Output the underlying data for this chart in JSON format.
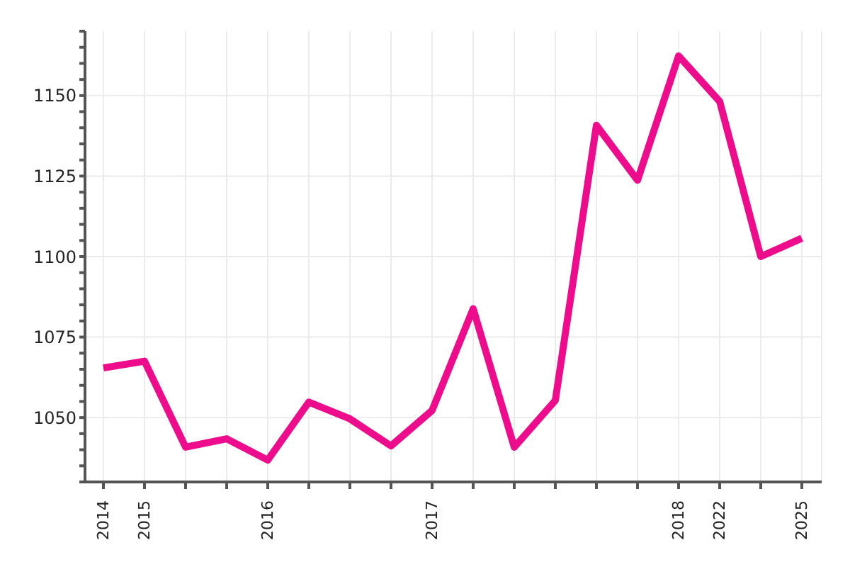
{
  "chart_data": {
    "type": "line",
    "categories": [
      "2014",
      "2015",
      null,
      null,
      "2016",
      null,
      null,
      null,
      "2017",
      null,
      null,
      null,
      null,
      null,
      "2018",
      "2022",
      null,
      "2025"
    ],
    "series": [
      {
        "color": "#ec0c8c",
        "values": [
          1065.4,
          1067.5,
          1040.8,
          1043.4,
          1036.8,
          1054.8,
          1049.6,
          1041.2,
          1052.2,
          1083.8,
          1040.8,
          1055.3,
          1140.8,
          1123.7,
          1162.3,
          1148.2,
          1100,
          1105.7
        ]
      }
    ],
    "ylim": [
      1030,
      1170
    ],
    "yticks": [
      {
        "value": 1030,
        "label": null
      },
      {
        "value": 1035,
        "label": null
      },
      {
        "value": 1040,
        "label": null
      },
      {
        "value": 1045,
        "label": null
      },
      1050,
      {
        "value": 1055,
        "label": null
      },
      {
        "value": 1060,
        "label": null
      },
      {
        "value": 1065,
        "label": null
      },
      {
        "value": 1070,
        "label": null
      },
      1075,
      {
        "value": 1080,
        "label": null
      },
      {
        "value": 1085,
        "label": null
      },
      {
        "value": 1090,
        "label": null
      },
      {
        "value": 1095,
        "label": null
      },
      1100,
      {
        "value": 1105,
        "label": null
      },
      {
        "value": 1110,
        "label": null
      },
      {
        "value": 1115,
        "label": null
      },
      {
        "value": 1120,
        "label": null
      },
      1125,
      {
        "value": 1130,
        "label": null
      },
      {
        "value": 1135,
        "label": null
      },
      {
        "value": 1140,
        "label": null
      },
      {
        "value": 1145,
        "label": null
      },
      1150,
      {
        "value": 1155,
        "label": null
      },
      {
        "value": 1160,
        "label": null
      },
      {
        "value": 1165,
        "label": null
      },
      {
        "value": 1170,
        "label": null
      }
    ],
    "grid": true,
    "marker": "none",
    "line_style": "solid"
  }
}
